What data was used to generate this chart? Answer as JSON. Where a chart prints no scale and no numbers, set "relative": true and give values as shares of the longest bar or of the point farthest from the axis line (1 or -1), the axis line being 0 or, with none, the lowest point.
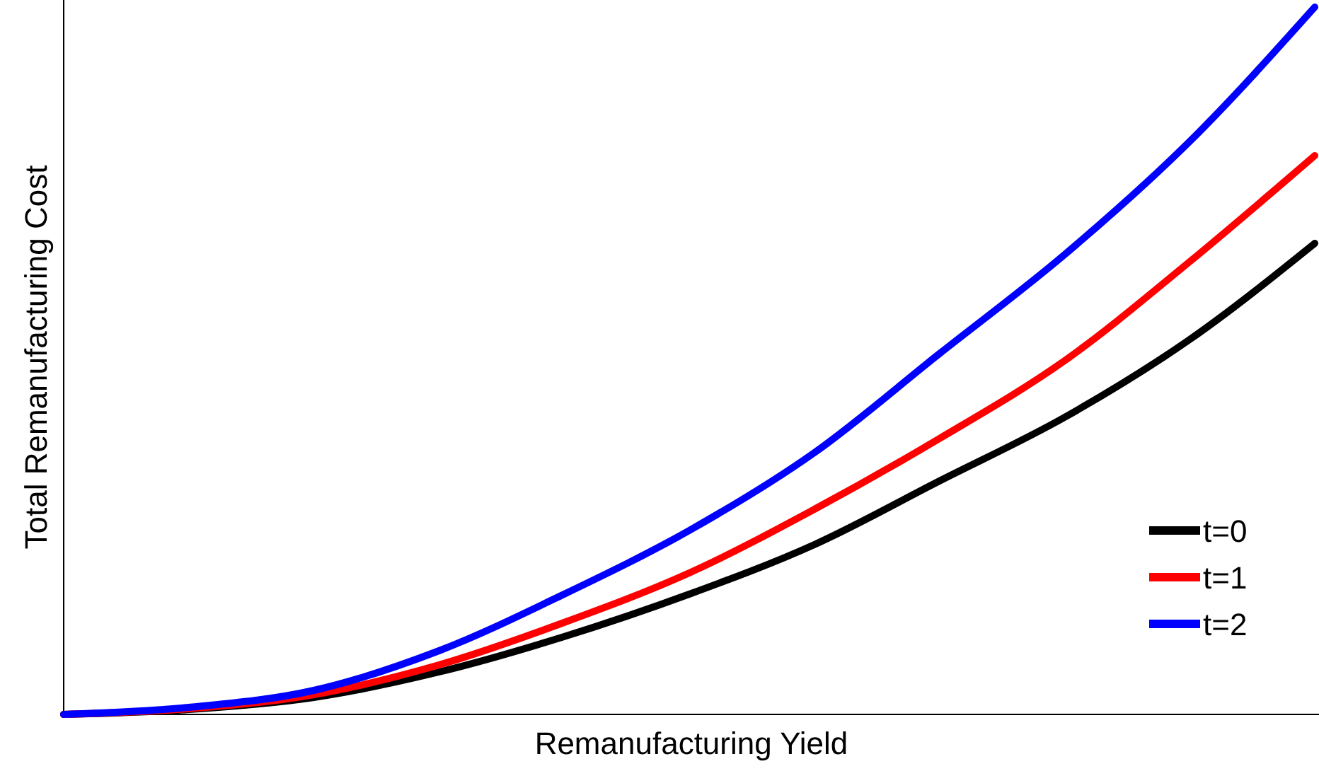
{
  "chart_data": {
    "type": "line",
    "relative": true,
    "xlabel": "Remanufacturing Yield",
    "ylabel": "Total Remanufacturing Cost",
    "categories": [
      null,
      null,
      null,
      null,
      null,
      null,
      null,
      null,
      null,
      null,
      null
    ],
    "series": [
      {
        "name": "t=0",
        "color": "#000000",
        "values": [
          0,
          0.007,
          0.024,
          0.06,
          0.11,
          0.17,
          0.24,
          0.33,
          0.42,
          0.53,
          0.666
        ]
      },
      {
        "name": "t=1",
        "color": "#ff0000",
        "values": [
          0,
          0.008,
          0.028,
          0.07,
          0.13,
          0.2,
          0.29,
          0.39,
          0.5,
          0.64,
          0.79
        ]
      },
      {
        "name": "t=2",
        "color": "#0000ff",
        "values": [
          0,
          0.01,
          0.034,
          0.09,
          0.17,
          0.26,
          0.37,
          0.51,
          0.65,
          0.81,
          1
        ]
      }
    ],
    "legend": "bottom right",
    "marker": "none",
    "line_style": "solid"
  }
}
